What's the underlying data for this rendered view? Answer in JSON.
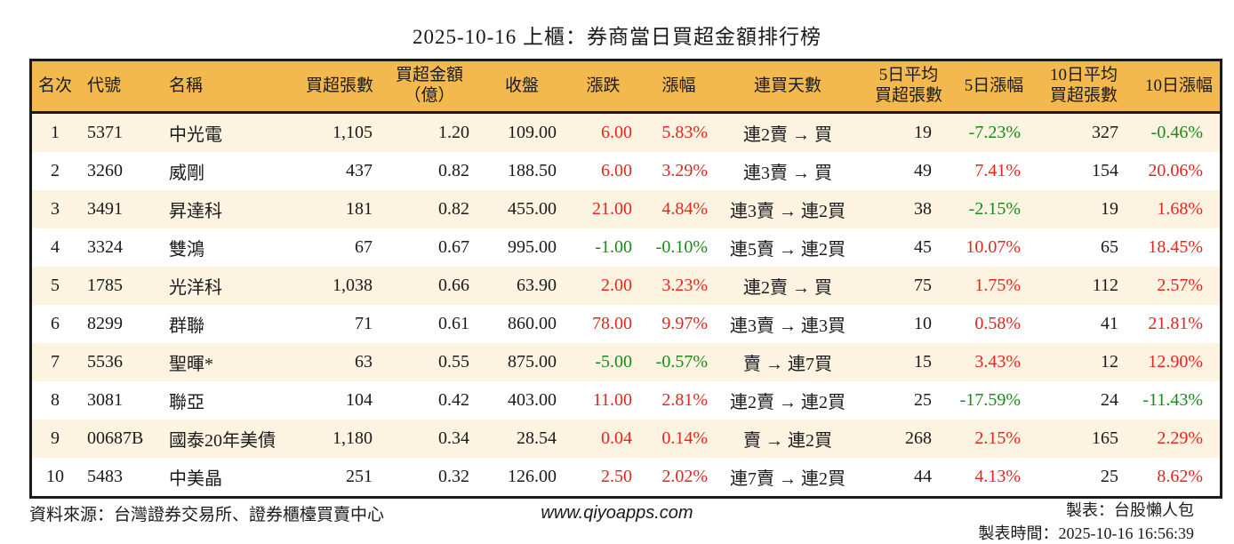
{
  "title": "2025-10-16 上櫃：券商當日買超金額排行榜",
  "chart_data": {
    "type": "table",
    "columns": [
      {
        "key": "rank",
        "label": "名次"
      },
      {
        "key": "code",
        "label": "代號"
      },
      {
        "key": "name",
        "label": "名稱"
      },
      {
        "key": "volume",
        "label": "買超張數"
      },
      {
        "key": "amount",
        "label": "買超金額\n（億）"
      },
      {
        "key": "close",
        "label": "收盤"
      },
      {
        "key": "change",
        "label": "漲跌"
      },
      {
        "key": "change_pct",
        "label": "漲幅"
      },
      {
        "key": "streak",
        "label": "連買天數"
      },
      {
        "key": "avg5",
        "label": "5日平均\n買超張數"
      },
      {
        "key": "pct5",
        "label": "5日漲幅"
      },
      {
        "key": "avg10",
        "label": "10日平均\n買超張數"
      },
      {
        "key": "pct10",
        "label": "10日漲幅"
      }
    ],
    "signed_color_columns": [
      "change",
      "change_pct",
      "pct5",
      "pct10"
    ],
    "rows": [
      {
        "rank": "1",
        "code": "5371",
        "name": "中光電",
        "volume": "1,105",
        "amount": "1.20",
        "close": "109.00",
        "change": "6.00",
        "change_pct": "5.83%",
        "streak": "連2賣 → 買",
        "avg5": "19",
        "pct5": "-7.23%",
        "avg10": "327",
        "pct10": "-0.46%"
      },
      {
        "rank": "2",
        "code": "3260",
        "name": "威剛",
        "volume": "437",
        "amount": "0.82",
        "close": "188.50",
        "change": "6.00",
        "change_pct": "3.29%",
        "streak": "連3賣 → 買",
        "avg5": "49",
        "pct5": "7.41%",
        "avg10": "154",
        "pct10": "20.06%"
      },
      {
        "rank": "3",
        "code": "3491",
        "name": "昇達科",
        "volume": "181",
        "amount": "0.82",
        "close": "455.00",
        "change": "21.00",
        "change_pct": "4.84%",
        "streak": "連3賣 → 連2買",
        "avg5": "38",
        "pct5": "-2.15%",
        "avg10": "19",
        "pct10": "1.68%"
      },
      {
        "rank": "4",
        "code": "3324",
        "name": "雙鴻",
        "volume": "67",
        "amount": "0.67",
        "close": "995.00",
        "change": "-1.00",
        "change_pct": "-0.10%",
        "streak": "連5賣 → 連2買",
        "avg5": "45",
        "pct5": "10.07%",
        "avg10": "65",
        "pct10": "18.45%"
      },
      {
        "rank": "5",
        "code": "1785",
        "name": "光洋科",
        "volume": "1,038",
        "amount": "0.66",
        "close": "63.90",
        "change": "2.00",
        "change_pct": "3.23%",
        "streak": "連2賣 → 買",
        "avg5": "75",
        "pct5": "1.75%",
        "avg10": "112",
        "pct10": "2.57%"
      },
      {
        "rank": "6",
        "code": "8299",
        "name": "群聯",
        "volume": "71",
        "amount": "0.61",
        "close": "860.00",
        "change": "78.00",
        "change_pct": "9.97%",
        "streak": "連3賣 → 連3買",
        "avg5": "10",
        "pct5": "0.58%",
        "avg10": "41",
        "pct10": "21.81%"
      },
      {
        "rank": "7",
        "code": "5536",
        "name": "聖暉*",
        "volume": "63",
        "amount": "0.55",
        "close": "875.00",
        "change": "-5.00",
        "change_pct": "-0.57%",
        "streak": "賣 → 連7買",
        "avg5": "15",
        "pct5": "3.43%",
        "avg10": "12",
        "pct10": "12.90%"
      },
      {
        "rank": "8",
        "code": "3081",
        "name": "聯亞",
        "volume": "104",
        "amount": "0.42",
        "close": "403.00",
        "change": "11.00",
        "change_pct": "2.81%",
        "streak": "連2賣 → 連2買",
        "avg5": "25",
        "pct5": "-17.59%",
        "avg10": "24",
        "pct10": "-11.43%"
      },
      {
        "rank": "9",
        "code": "00687B",
        "name": "國泰20年美債",
        "volume": "1,180",
        "amount": "0.34",
        "close": "28.54",
        "change": "0.04",
        "change_pct": "0.14%",
        "streak": "賣 → 連2買",
        "avg5": "268",
        "pct5": "2.15%",
        "avg10": "165",
        "pct10": "2.29%"
      },
      {
        "rank": "10",
        "code": "5483",
        "name": "中美晶",
        "volume": "251",
        "amount": "0.32",
        "close": "126.00",
        "change": "2.50",
        "change_pct": "2.02%",
        "streak": "連7賣 → 連2買",
        "avg5": "44",
        "pct5": "4.13%",
        "avg10": "25",
        "pct10": "8.62%"
      }
    ]
  },
  "footer": {
    "source": "資料來源：台灣證券交易所、證券櫃檯買賣中心",
    "site": "www.qiyoapps.com",
    "maker": "製表：台股懶人包",
    "time": "製表時間：2025-10-16 16:56:39"
  },
  "colors": {
    "up_red": "#e1261d",
    "down_green": "#188a18",
    "header_bg": "#f3b94f",
    "row_alt_bg": "#fcf4e1",
    "border": "#1a1a1a"
  }
}
